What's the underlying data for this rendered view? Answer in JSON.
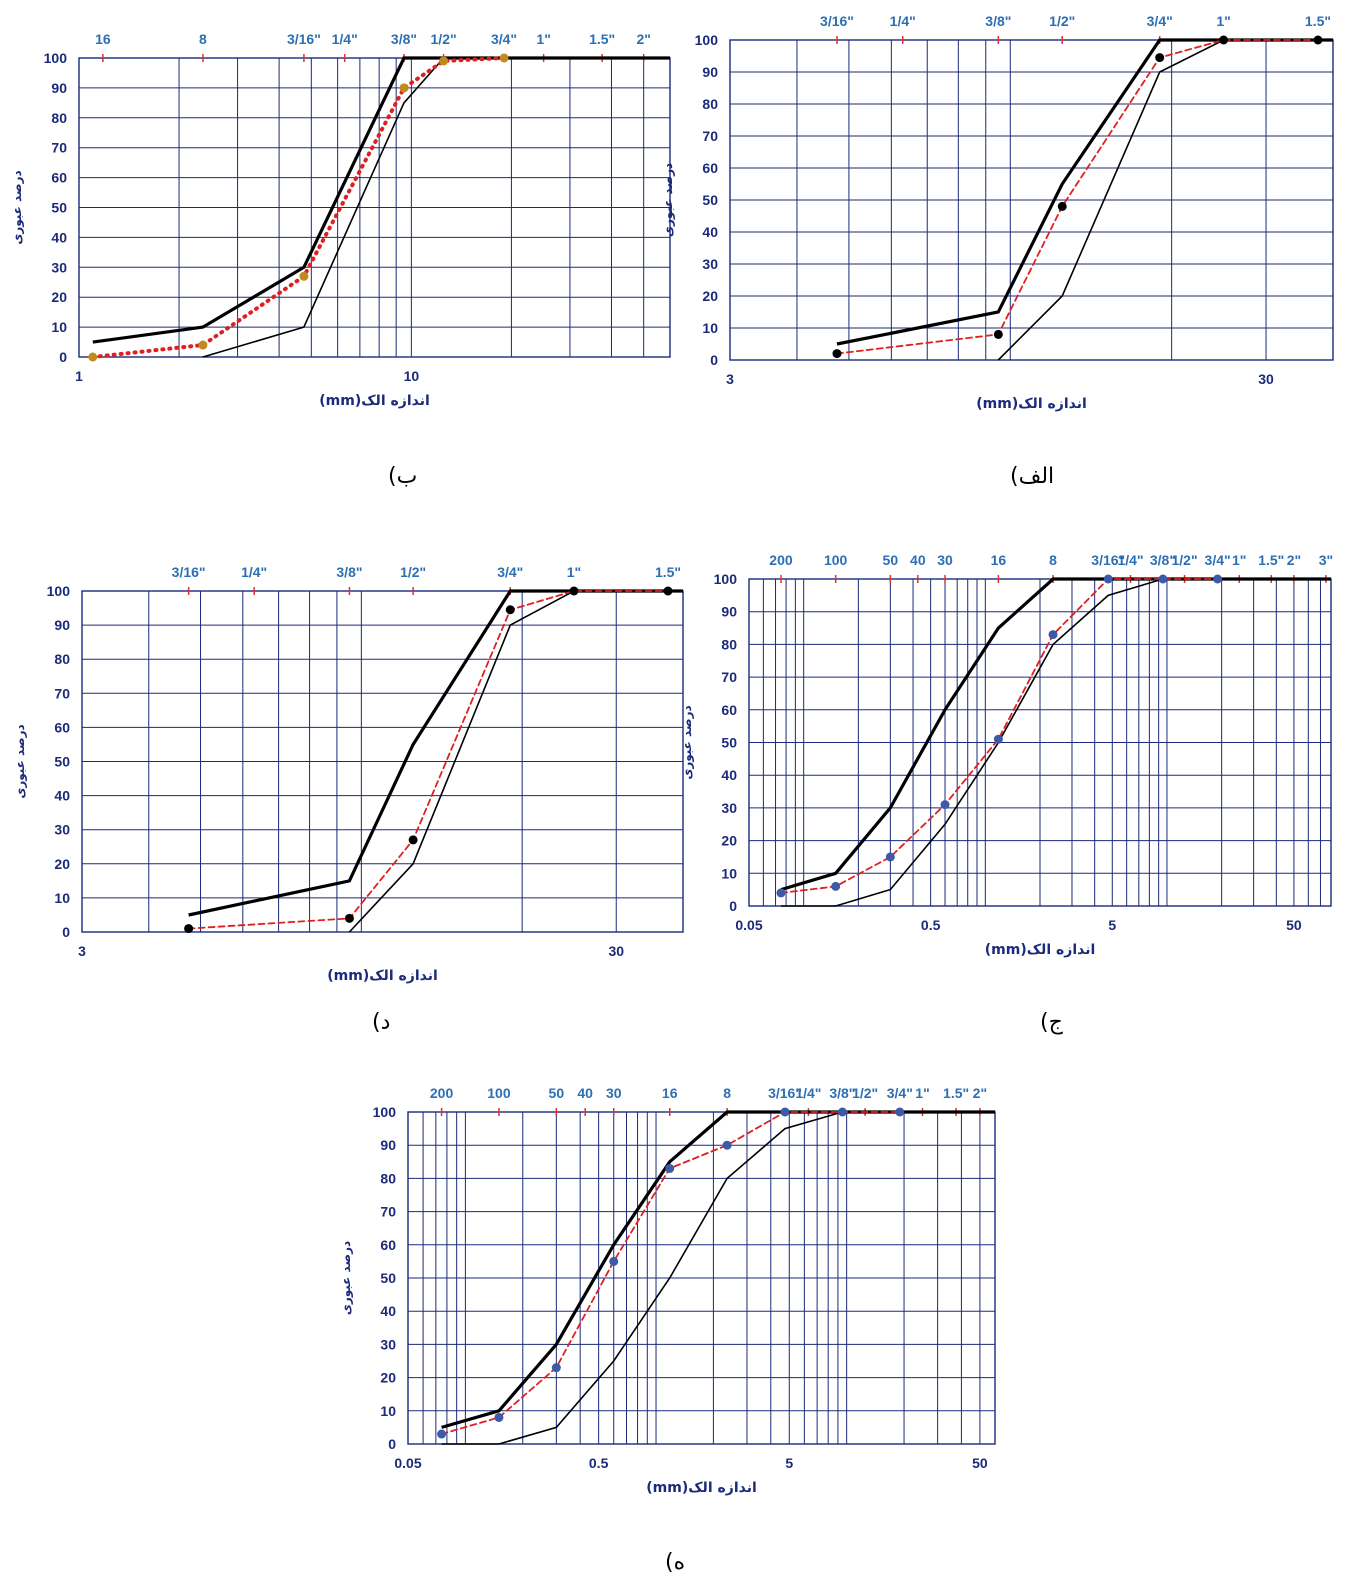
{
  "colors": {
    "grid": "#1b2a7a",
    "axis_text": "#1b2a7a",
    "sieve_text": "#2d6fb3",
    "sieve_tick": "#e03030",
    "envelope": "#000000",
    "gradation": "#e02020",
    "marker_black": "#000000",
    "marker_gold": "#c08a1c",
    "marker_blue": "#3d5aa8"
  },
  "chart_data": [
    {
      "id": "b",
      "caption": "ب)",
      "type": "line",
      "x_scale": "log",
      "xlim": [
        1,
        60
      ],
      "ylim": [
        0,
        100
      ],
      "xticks": [
        {
          "v": 1,
          "label": "1"
        },
        {
          "v": 10,
          "label": "10"
        }
      ],
      "yticks": [
        0,
        10,
        20,
        30,
        40,
        50,
        60,
        70,
        80,
        90,
        100
      ],
      "xlabel": "اندازه الک(mm)",
      "ylabel": "درصد عبوری",
      "sieve_labels": [
        {
          "v": 1.18,
          "label": "16"
        },
        {
          "v": 2.36,
          "label": "8"
        },
        {
          "v": 4.75,
          "label": "3/16\""
        },
        {
          "v": 6.3,
          "label": "1/4\""
        },
        {
          "v": 9.5,
          "label": "3/8\""
        },
        {
          "v": 12.5,
          "label": "1/2\""
        },
        {
          "v": 19,
          "label": "3/4\""
        },
        {
          "v": 25,
          "label": "1\""
        },
        {
          "v": 37.5,
          "label": "1.5\""
        },
        {
          "v": 50,
          "label": "2\""
        }
      ],
      "marker_color": "gold",
      "gradation_style": "dotted",
      "series": [
        {
          "role": "upper",
          "x": [
            1.1,
            2.36,
            4.75,
            9.5,
            60
          ],
          "y": [
            5,
            10,
            30,
            100,
            100
          ]
        },
        {
          "role": "lower",
          "x": [
            2.36,
            4.75,
            9.5,
            12.5,
            60
          ],
          "y": [
            0,
            10,
            85,
            100,
            100
          ]
        },
        {
          "role": "gradation",
          "x": [
            1.1,
            2.36,
            4.75,
            9.5,
            12.5,
            19
          ],
          "y": [
            0,
            4,
            27,
            90,
            99,
            100
          ]
        }
      ]
    },
    {
      "id": "alef",
      "caption": "الف)",
      "type": "line",
      "x_scale": "log",
      "xlim": [
        3,
        40
      ],
      "ylim": [
        0,
        100
      ],
      "xticks": [
        {
          "v": 3,
          "label": "3"
        },
        {
          "v": 30,
          "label": "30"
        }
      ],
      "yticks": [
        0,
        10,
        20,
        30,
        40,
        50,
        60,
        70,
        80,
        90,
        100
      ],
      "xlabel": "اندازه الک(mm)",
      "ylabel": "درصد عبوری",
      "sieve_labels": [
        {
          "v": 4.75,
          "label": "3/16\""
        },
        {
          "v": 6.3,
          "label": "1/4\""
        },
        {
          "v": 9.5,
          "label": "3/8\""
        },
        {
          "v": 12.5,
          "label": "1/2\""
        },
        {
          "v": 19,
          "label": "3/4\""
        },
        {
          "v": 25,
          "label": "1\""
        },
        {
          "v": 37.5,
          "label": "1.5\""
        }
      ],
      "marker_color": "black",
      "gradation_style": "dashed",
      "series": [
        {
          "role": "upper",
          "x": [
            4.75,
            9.5,
            12.5,
            19,
            40
          ],
          "y": [
            5,
            15,
            55,
            100,
            100
          ]
        },
        {
          "role": "lower",
          "x": [
            9.5,
            12.5,
            19,
            25,
            40
          ],
          "y": [
            0,
            20,
            90,
            100,
            100
          ]
        },
        {
          "role": "gradation",
          "x": [
            4.75,
            9.5,
            12.5,
            19,
            25,
            37.5
          ],
          "y": [
            2,
            8,
            48,
            94.5,
            100,
            100
          ]
        }
      ]
    },
    {
      "id": "dal",
      "caption": "د)",
      "type": "line",
      "x_scale": "log",
      "xlim": [
        3,
        40
      ],
      "ylim": [
        0,
        100
      ],
      "xticks": [
        {
          "v": 3,
          "label": "3"
        },
        {
          "v": 30,
          "label": "30"
        }
      ],
      "yticks": [
        0,
        10,
        20,
        30,
        40,
        50,
        60,
        70,
        80,
        90,
        100
      ],
      "xlabel": "اندازه الک(mm)",
      "ylabel": "درصد عبوری",
      "sieve_labels": [
        {
          "v": 4.75,
          "label": "3/16\""
        },
        {
          "v": 6.3,
          "label": "1/4\""
        },
        {
          "v": 9.5,
          "label": "3/8\""
        },
        {
          "v": 12.5,
          "label": "1/2\""
        },
        {
          "v": 19,
          "label": "3/4\""
        },
        {
          "v": 25,
          "label": "1\""
        },
        {
          "v": 37.5,
          "label": "1.5\""
        }
      ],
      "marker_color": "black",
      "gradation_style": "dashed",
      "series": [
        {
          "role": "upper",
          "x": [
            4.75,
            9.5,
            12.5,
            19,
            40
          ],
          "y": [
            5,
            15,
            55,
            100,
            100
          ]
        },
        {
          "role": "lower",
          "x": [
            9.5,
            12.5,
            19,
            25,
            40
          ],
          "y": [
            0,
            20,
            90,
            100,
            100
          ]
        },
        {
          "role": "gradation",
          "x": [
            4.75,
            9.5,
            12.5,
            19,
            25,
            37.5
          ],
          "y": [
            1,
            4,
            27,
            94.5,
            100,
            100
          ]
        }
      ]
    },
    {
      "id": "jim",
      "caption": "ج)",
      "type": "line",
      "x_scale": "log",
      "xlim": [
        0.05,
        80
      ],
      "ylim": [
        0,
        100
      ],
      "xticks": [
        {
          "v": 0.05,
          "label": "0.05"
        },
        {
          "v": 0.5,
          "label": "0.5"
        },
        {
          "v": 5,
          "label": "5"
        },
        {
          "v": 50,
          "label": "50"
        }
      ],
      "yticks": [
        0,
        10,
        20,
        30,
        40,
        50,
        60,
        70,
        80,
        90,
        100
      ],
      "xlabel": "اندازه الک(mm)",
      "ylabel": "درصد عبوری",
      "sieve_labels": [
        {
          "v": 0.075,
          "label": "200"
        },
        {
          "v": 0.15,
          "label": "100"
        },
        {
          "v": 0.3,
          "label": "50"
        },
        {
          "v": 0.425,
          "label": "40"
        },
        {
          "v": 0.6,
          "label": "30"
        },
        {
          "v": 1.18,
          "label": "16"
        },
        {
          "v": 2.36,
          "label": "8"
        },
        {
          "v": 4.75,
          "label": "3/16\""
        },
        {
          "v": 6.3,
          "label": "1/4\""
        },
        {
          "v": 9.5,
          "label": "3/8\""
        },
        {
          "v": 12.5,
          "label": "1/2\""
        },
        {
          "v": 19,
          "label": "3/4\""
        },
        {
          "v": 25,
          "label": "1\""
        },
        {
          "v": 37.5,
          "label": "1.5\""
        },
        {
          "v": 50,
          "label": "2\""
        },
        {
          "v": 75,
          "label": "3\""
        }
      ],
      "marker_color": "blue",
      "gradation_style": "dashed",
      "series": [
        {
          "role": "upper",
          "x": [
            0.075,
            0.15,
            0.3,
            0.6,
            1.18,
            2.36,
            80
          ],
          "y": [
            5,
            10,
            30,
            60,
            85,
            100,
            100
          ]
        },
        {
          "role": "lower",
          "x": [
            0.075,
            0.15,
            0.3,
            0.6,
            1.18,
            2.36,
            4.75,
            9.5,
            80
          ],
          "y": [
            0,
            0,
            5,
            25,
            50,
            80,
            95,
            100,
            100
          ]
        },
        {
          "role": "gradation",
          "x": [
            0.075,
            0.15,
            0.3,
            0.6,
            1.18,
            2.36,
            4.75,
            9.5,
            19
          ],
          "y": [
            4,
            6,
            15,
            31,
            51,
            83,
            100,
            100,
            100
          ]
        }
      ]
    },
    {
      "id": "he",
      "caption": "ه)",
      "type": "line",
      "x_scale": "log",
      "xlim": [
        0.05,
        60
      ],
      "ylim": [
        0,
        100
      ],
      "xticks": [
        {
          "v": 0.05,
          "label": "0.05"
        },
        {
          "v": 0.5,
          "label": "0.5"
        },
        {
          "v": 5,
          "label": "5"
        },
        {
          "v": 50,
          "label": "50"
        }
      ],
      "yticks": [
        0,
        10,
        20,
        30,
        40,
        50,
        60,
        70,
        80,
        90,
        100
      ],
      "xlabel": "اندازه الک(mm)",
      "ylabel": "درصد عبوری",
      "sieve_labels": [
        {
          "v": 0.075,
          "label": "200"
        },
        {
          "v": 0.15,
          "label": "100"
        },
        {
          "v": 0.3,
          "label": "50"
        },
        {
          "v": 0.425,
          "label": "40"
        },
        {
          "v": 0.6,
          "label": "30"
        },
        {
          "v": 1.18,
          "label": "16"
        },
        {
          "v": 2.36,
          "label": "8"
        },
        {
          "v": 4.75,
          "label": "3/16\""
        },
        {
          "v": 6.3,
          "label": "1/4\""
        },
        {
          "v": 9.5,
          "label": "3/8\""
        },
        {
          "v": 12.5,
          "label": "1/2\""
        },
        {
          "v": 19,
          "label": "3/4\""
        },
        {
          "v": 25,
          "label": "1\""
        },
        {
          "v": 37.5,
          "label": "1.5\""
        },
        {
          "v": 50,
          "label": "2\""
        }
      ],
      "marker_color": "blue",
      "gradation_style": "dashed",
      "series": [
        {
          "role": "upper",
          "x": [
            0.075,
            0.15,
            0.3,
            0.6,
            1.18,
            2.36,
            60
          ],
          "y": [
            5,
            10,
            30,
            60,
            85,
            100,
            100
          ]
        },
        {
          "role": "lower",
          "x": [
            0.075,
            0.15,
            0.3,
            0.6,
            1.18,
            2.36,
            4.75,
            9.5,
            60
          ],
          "y": [
            0,
            0,
            5,
            25,
            50,
            80,
            95,
            100,
            100
          ]
        },
        {
          "role": "gradation",
          "x": [
            0.075,
            0.15,
            0.3,
            0.6,
            1.18,
            2.36,
            4.75,
            9.5,
            19
          ],
          "y": [
            3,
            8,
            23,
            55,
            83,
            90,
            100,
            100,
            100
          ]
        }
      ]
    }
  ]
}
